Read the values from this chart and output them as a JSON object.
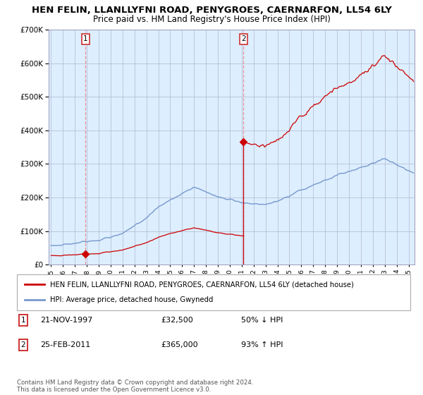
{
  "title_line1": "HEN FELIN, LLANLLYFNI ROAD, PENYGROES, CAERNARFON, LL54 6LY",
  "title_line2": "Price paid vs. HM Land Registry's House Price Index (HPI)",
  "hpi_label": "HPI: Average price, detached house, Gwynedd",
  "property_label": "HEN FELIN, LLANLLYFNI ROAD, PENYGROES, CAERNARFON, LL54 6LY (detached house)",
  "annotation1_num": "1",
  "annotation1_date": "21-NOV-1997",
  "annotation1_price": "£32,500",
  "annotation1_hpi": "50% ↓ HPI",
  "annotation1_year": 1997.89,
  "annotation1_value": 32500,
  "annotation2_num": "2",
  "annotation2_date": "25-FEB-2011",
  "annotation2_price": "£365,000",
  "annotation2_hpi": "93% ↑ HPI",
  "annotation2_year": 2011.14,
  "annotation2_value": 365000,
  "ylim": [
    0,
    700000
  ],
  "xlim_start": 1995,
  "xlim_end": 2025.5,
  "background_color": "#ffffff",
  "plot_bg_color": "#ddeeff",
  "grid_color": "#b0b8d0",
  "hpi_color": "#7799cc",
  "property_color": "#cc0000",
  "marker_color": "#cc0000",
  "vline_color": "#ee8888",
  "footer": "Contains HM Land Registry data © Crown copyright and database right 2024.\nThis data is licensed under the Open Government Licence v3.0.",
  "title_fontsize": 9.5,
  "subtitle_fontsize": 8.5
}
